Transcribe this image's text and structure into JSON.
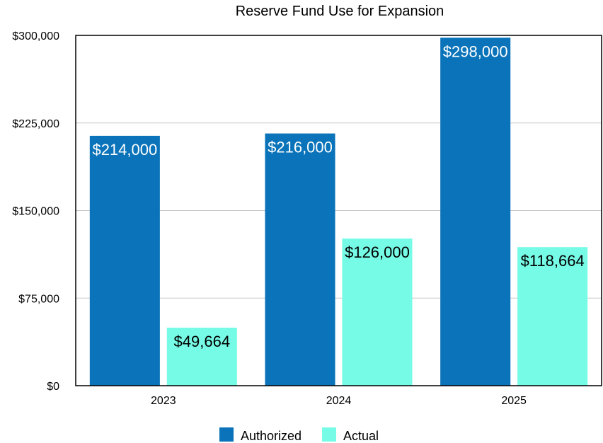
{
  "chart_data": {
    "type": "bar",
    "title": "Reserve Fund Use for Expansion",
    "categories": [
      "2023",
      "2024",
      "2025"
    ],
    "series": [
      {
        "name": "Authorized",
        "color": "#0a73b9",
        "label_color": "#ffffff",
        "values": [
          214000,
          216000,
          298000
        ],
        "labels": [
          "$214,000",
          "$216,000",
          "$298,000"
        ]
      },
      {
        "name": "Actual",
        "color": "#76fbe6",
        "label_color": "#000000",
        "values": [
          49664,
          126000,
          118664
        ],
        "labels": [
          "$49,664",
          "$126,000",
          "$118,664"
        ]
      }
    ],
    "ylim": [
      0,
      300000
    ],
    "yticks": [
      0,
      75000,
      150000,
      225000,
      300000
    ],
    "ytick_labels": [
      "$0",
      "$75,000",
      "$150,000",
      "$225,000",
      "$300,000"
    ],
    "grid": true,
    "legend_position": "bottom-center"
  }
}
